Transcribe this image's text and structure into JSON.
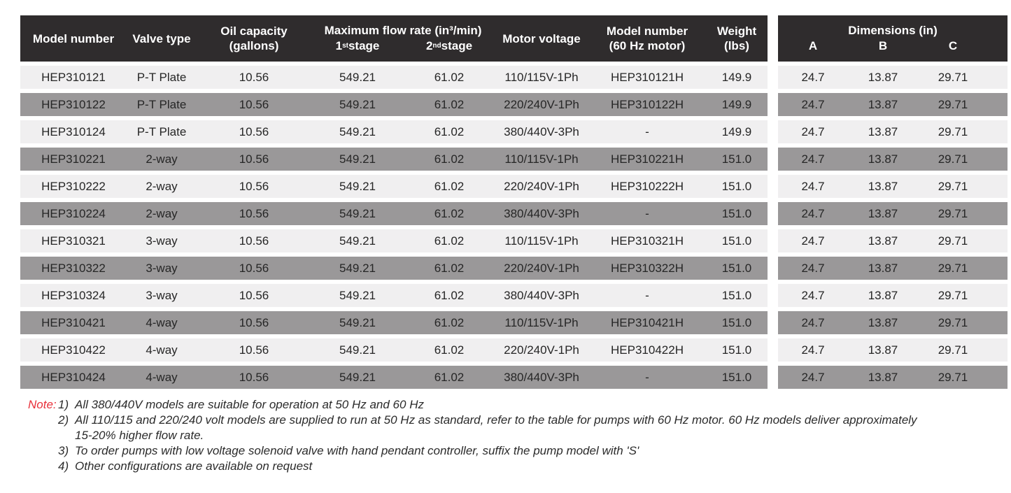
{
  "main_table": {
    "headers": {
      "model_number": "Model number",
      "valve_type": "Valve type",
      "oil_capacity": "Oil capacity\n(gallons)",
      "flow_group": {
        "title": "Maximum flow rate (in³/min)",
        "stage1": {
          "base": "1",
          "sup": "st",
          "rest": " stage"
        },
        "stage2": {
          "base": "2",
          "sup": "nd",
          "rest": " stage"
        }
      },
      "motor_voltage": "Motor voltage",
      "model_number_60hz": "Model number\n(60 Hz motor)",
      "weight": "Weight\n(lbs)"
    }
  },
  "dims_table": {
    "title": "Dimensions (in)",
    "columns": {
      "a": "A",
      "b": "B",
      "c": "C"
    }
  },
  "rows": [
    {
      "model": "HEP310121",
      "valve": "P-T Plate",
      "oil": "10.56",
      "stage1": "549.21",
      "stage2": "61.02",
      "voltage": "110/115V-1Ph",
      "model_60hz": "HEP310121H",
      "weight": "149.9",
      "dims": {
        "a": "24.7",
        "b": "13.87",
        "c": "29.71"
      }
    },
    {
      "model": "HEP310122",
      "valve": "P-T Plate",
      "oil": "10.56",
      "stage1": "549.21",
      "stage2": "61.02",
      "voltage": "220/240V-1Ph",
      "model_60hz": "HEP310122H",
      "weight": "149.9",
      "dims": {
        "a": "24.7",
        "b": "13.87",
        "c": "29.71"
      }
    },
    {
      "model": "HEP310124",
      "valve": "P-T Plate",
      "oil": "10.56",
      "stage1": "549.21",
      "stage2": "61.02",
      "voltage": "380/440V-3Ph",
      "model_60hz": "-",
      "weight": "149.9",
      "dims": {
        "a": "24.7",
        "b": "13.87",
        "c": "29.71"
      }
    },
    {
      "model": "HEP310221",
      "valve": "2-way",
      "oil": "10.56",
      "stage1": "549.21",
      "stage2": "61.02",
      "voltage": "110/115V-1Ph",
      "model_60hz": "HEP310221H",
      "weight": "151.0",
      "dims": {
        "a": "24.7",
        "b": "13.87",
        "c": "29.71"
      }
    },
    {
      "model": "HEP310222",
      "valve": "2-way",
      "oil": "10.56",
      "stage1": "549.21",
      "stage2": "61.02",
      "voltage": "220/240V-1Ph",
      "model_60hz": "HEP310222H",
      "weight": "151.0",
      "dims": {
        "a": "24.7",
        "b": "13.87",
        "c": "29.71"
      }
    },
    {
      "model": "HEP310224",
      "valve": "2-way",
      "oil": "10.56",
      "stage1": "549.21",
      "stage2": "61.02",
      "voltage": "380/440V-3Ph",
      "model_60hz": "-",
      "weight": "151.0",
      "dims": {
        "a": "24.7",
        "b": "13.87",
        "c": "29.71"
      }
    },
    {
      "model": "HEP310321",
      "valve": "3-way",
      "oil": "10.56",
      "stage1": "549.21",
      "stage2": "61.02",
      "voltage": "110/115V-1Ph",
      "model_60hz": "HEP310321H",
      "weight": "151.0",
      "dims": {
        "a": "24.7",
        "b": "13.87",
        "c": "29.71"
      }
    },
    {
      "model": "HEP310322",
      "valve": "3-way",
      "oil": "10.56",
      "stage1": "549.21",
      "stage2": "61.02",
      "voltage": "220/240V-1Ph",
      "model_60hz": "HEP310322H",
      "weight": "151.0",
      "dims": {
        "a": "24.7",
        "b": "13.87",
        "c": "29.71"
      }
    },
    {
      "model": "HEP310324",
      "valve": "3-way",
      "oil": "10.56",
      "stage1": "549.21",
      "stage2": "61.02",
      "voltage": "380/440V-3Ph",
      "model_60hz": "-",
      "weight": "151.0",
      "dims": {
        "a": "24.7",
        "b": "13.87",
        "c": "29.71"
      }
    },
    {
      "model": "HEP310421",
      "valve": "4-way",
      "oil": "10.56",
      "stage1": "549.21",
      "stage2": "61.02",
      "voltage": "110/115V-1Ph",
      "model_60hz": "HEP310421H",
      "weight": "151.0",
      "dims": {
        "a": "24.7",
        "b": "13.87",
        "c": "29.71"
      }
    },
    {
      "model": "HEP310422",
      "valve": "4-way",
      "oil": "10.56",
      "stage1": "549.21",
      "stage2": "61.02",
      "voltage": "220/240V-1Ph",
      "model_60hz": "HEP310422H",
      "weight": "151.0",
      "dims": {
        "a": "24.7",
        "b": "13.87",
        "c": "29.71"
      }
    },
    {
      "model": "HEP310424",
      "valve": "4-way",
      "oil": "10.56",
      "stage1": "549.21",
      "stage2": "61.02",
      "voltage": "380/440V-3Ph",
      "model_60hz": "-",
      "weight": "151.0",
      "dims": {
        "a": "24.7",
        "b": "13.87",
        "c": "29.71"
      }
    }
  ],
  "notes": {
    "label": "Note:",
    "items": [
      {
        "num": "1)",
        "text": "All 380/440V models are suitable for operation at 50 Hz and 60 Hz"
      },
      {
        "num": "2)",
        "text": "All 110/115 and 220/240 volt models are supplied to run at 50 Hz as standard, refer to the table for pumps with 60 Hz motor. 60 Hz models deliver approximately 15-20% higher flow rate."
      },
      {
        "num": "3)",
        "text": "To order pumps with low voltage solenoid valve with hand pendant controller, suffix the pump model with 'S'"
      },
      {
        "num": "4)",
        "text": "Other configurations are available on request"
      }
    ]
  },
  "colors": {
    "header_bg": "#2f2c2d",
    "row_light": "#f0eff0",
    "row_gray": "#9a9899",
    "note_red": "#e8303a"
  }
}
